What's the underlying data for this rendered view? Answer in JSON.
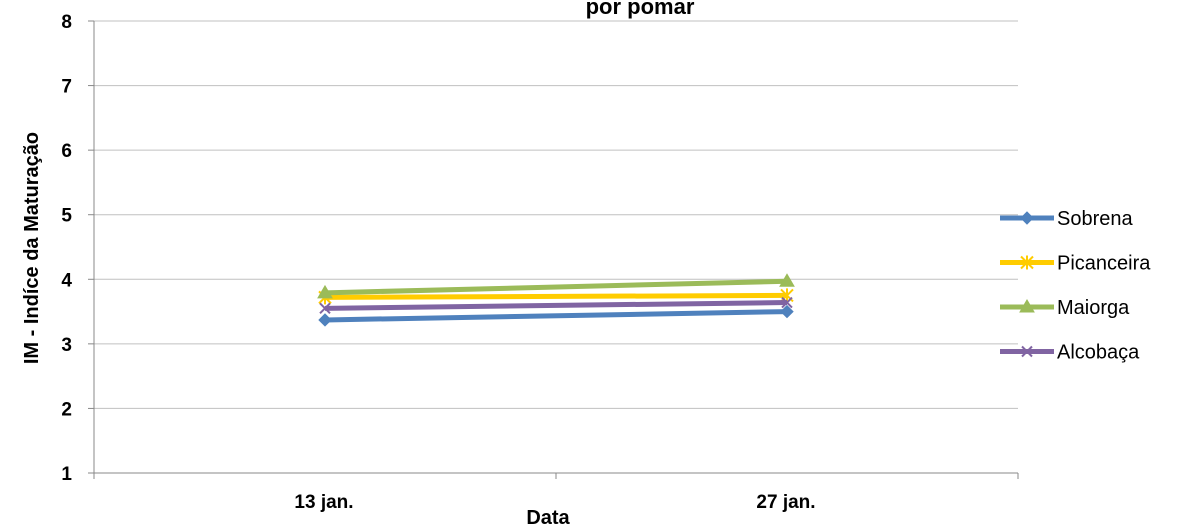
{
  "chart_data": {
    "type": "line",
    "title": "por pomar",
    "xlabel": "Data",
    "ylabel": "IM - Indíce da Maturação",
    "categories": [
      "13 jan.",
      "27 jan."
    ],
    "ylim": [
      1,
      8
    ],
    "yticks": [
      1,
      2,
      3,
      4,
      5,
      6,
      7,
      8
    ],
    "grid": true,
    "legend_position": "right",
    "series": [
      {
        "name": "Sobrena",
        "values": [
          3.37,
          3.5
        ],
        "color": "#4F81BD",
        "marker": "diamond"
      },
      {
        "name": "Picanceira",
        "values": [
          3.72,
          3.75
        ],
        "color": "#FFCC00",
        "marker": "asterisk"
      },
      {
        "name": "Maiorga",
        "values": [
          3.79,
          3.97
        ],
        "color": "#9BBB59",
        "marker": "triangle"
      },
      {
        "name": "Alcobaça",
        "values": [
          3.55,
          3.64
        ],
        "color": "#8064A2",
        "marker": "x"
      }
    ]
  }
}
